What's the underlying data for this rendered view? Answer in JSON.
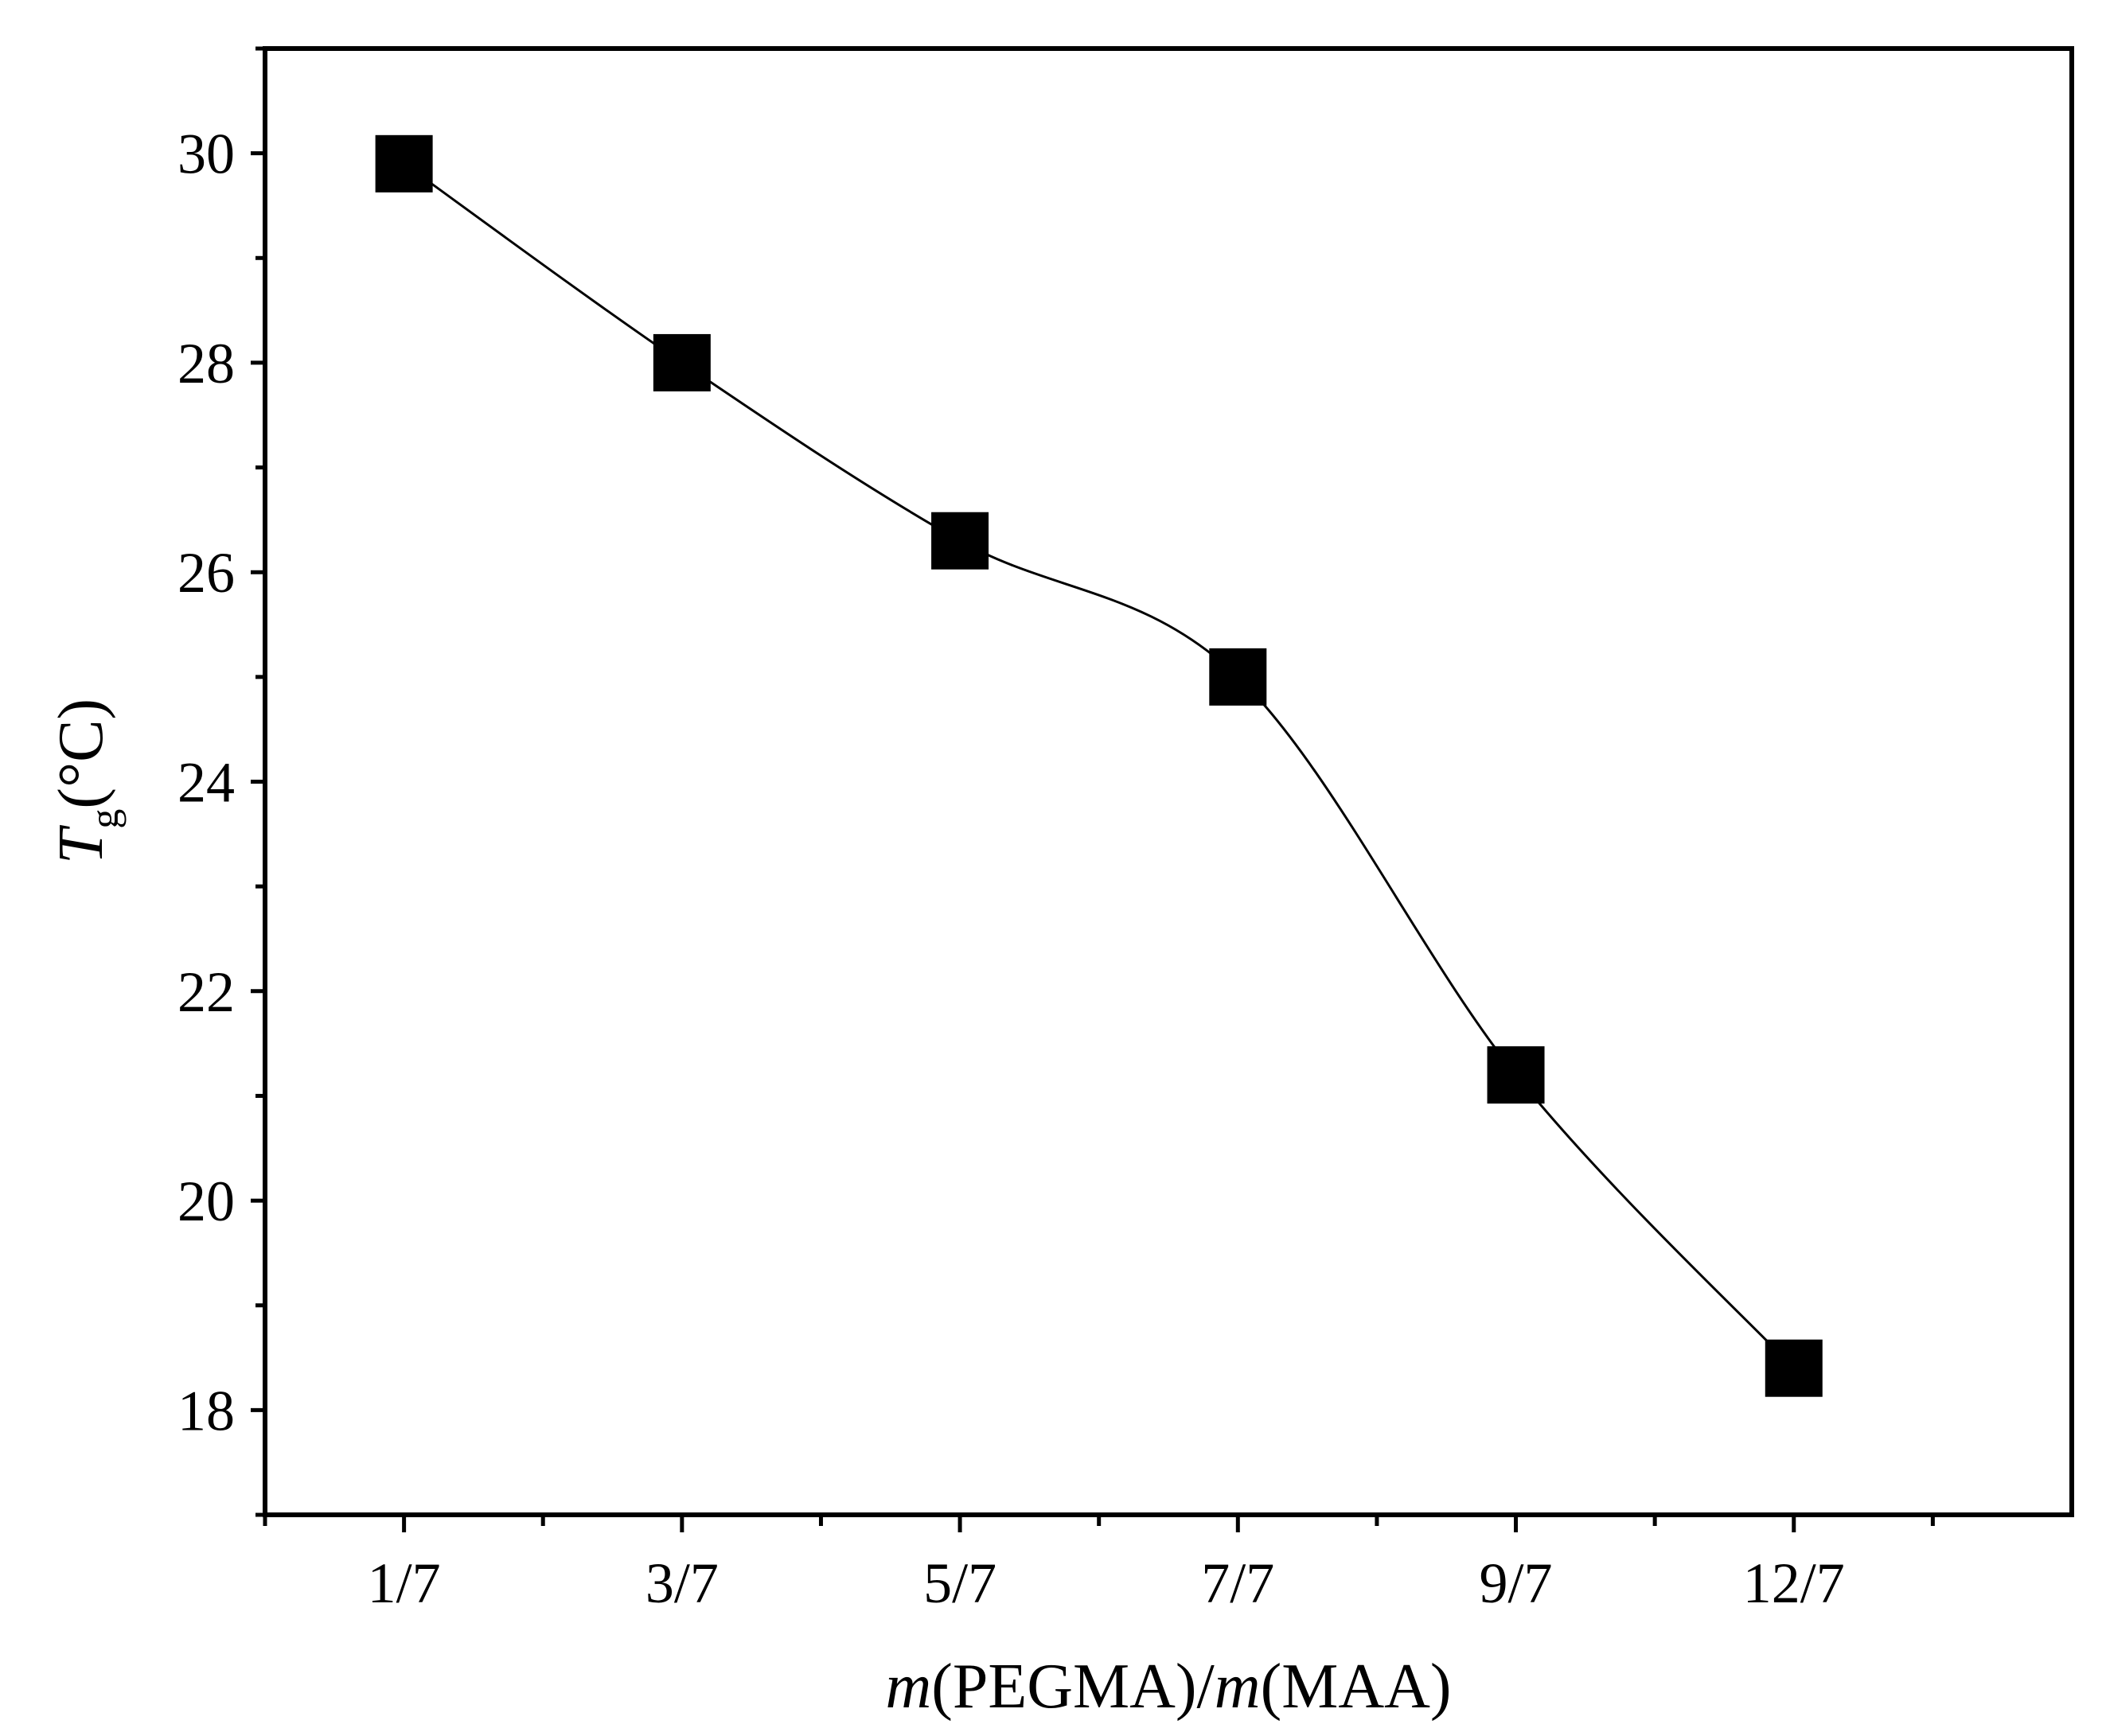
{
  "chart_data": {
    "type": "line",
    "title": "",
    "categories": [
      "1/7",
      "3/7",
      "5/7",
      "7/7",
      "9/7",
      "12/7"
    ],
    "series": [
      {
        "name": "Tg",
        "values": [
          29.9,
          28.0,
          26.3,
          25.0,
          21.2,
          18.4
        ]
      }
    ],
    "xlabel": {
      "italic": "m",
      "text1": "(PEGMA)/",
      "italic2": "m",
      "text2": "(MAA)"
    },
    "ylabel": {
      "symbol": "T",
      "subscript": "g",
      "unit": "(°C)"
    },
    "ylim": [
      17,
      31
    ],
    "yticks": [
      "18",
      "20",
      "22",
      "24",
      "26",
      "28",
      "30"
    ],
    "marker": "filled-square",
    "line": "smooth",
    "colors": {
      "line": "#000000",
      "marker": "#000000",
      "axes": "#000000"
    }
  }
}
